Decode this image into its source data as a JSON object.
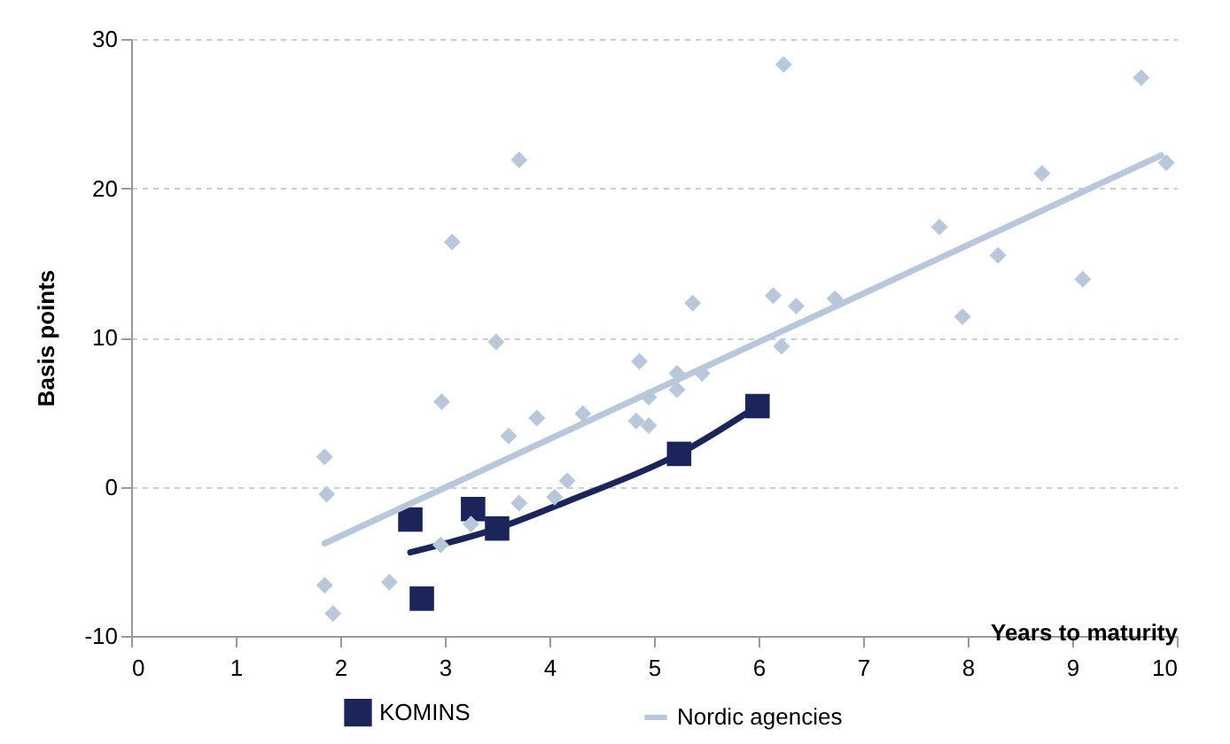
{
  "chart_data": {
    "type": "scatter",
    "xlabel": "Years to maturity",
    "ylabel": "Basis points",
    "xlim": [
      0,
      10
    ],
    "ylim": [
      -10,
      30
    ],
    "xticks": [
      0,
      1,
      2,
      3,
      4,
      5,
      6,
      7,
      8,
      9,
      10
    ],
    "yticks": [
      -10,
      0,
      10,
      20,
      30
    ],
    "grid": "y",
    "legend": "bottom",
    "series": [
      {
        "name": "KOMINS",
        "marker": "square",
        "color": "#1b2559",
        "x": [
          2.67,
          2.78,
          3.27,
          3.5,
          5.24,
          5.99
        ],
        "values": [
          -2.2,
          -7.5,
          -1.5,
          -2.8,
          2.2,
          5.4
        ]
      },
      {
        "type": "line",
        "color": "#1b2559",
        "x": [
          2.67,
          3.5,
          4.2,
          5.24,
          5.99
        ],
        "values": [
          -4.4,
          -2.8,
          -0.9,
          2.2,
          5.4
        ]
      },
      {
        "marker": "diamond",
        "color": "#b8c7d9",
        "x": [
          1.85,
          1.87,
          1.85,
          1.93,
          2.47,
          2.96,
          2.97,
          3.07,
          3.25,
          3.49,
          3.61,
          3.71,
          3.71,
          3.88,
          4.05,
          4.17,
          4.32,
          4.83,
          4.86,
          4.95,
          4.95,
          5.22,
          5.22,
          5.37,
          5.46,
          6.14,
          6.22,
          6.24,
          6.36,
          6.73,
          7.73,
          7.95,
          8.29,
          8.71,
          9.1,
          9.66,
          9.9
        ],
        "values": [
          2.0,
          -0.5,
          -6.6,
          -8.5,
          -6.4,
          -3.9,
          5.7,
          16.4,
          -2.5,
          9.7,
          3.4,
          -1.1,
          21.9,
          4.6,
          -0.7,
          0.4,
          4.9,
          4.4,
          8.4,
          6.0,
          4.1,
          7.6,
          6.5,
          12.3,
          7.6,
          12.8,
          9.4,
          28.3,
          12.1,
          12.6,
          17.4,
          11.4,
          15.5,
          21.0,
          13.9,
          27.4,
          21.7
        ]
      },
      {
        "name": "Nordic agencies",
        "type": "line",
        "color": "#b8c7d9",
        "x": [
          1.85,
          9.85
        ],
        "values": [
          -3.8,
          22.2
        ]
      }
    ]
  }
}
